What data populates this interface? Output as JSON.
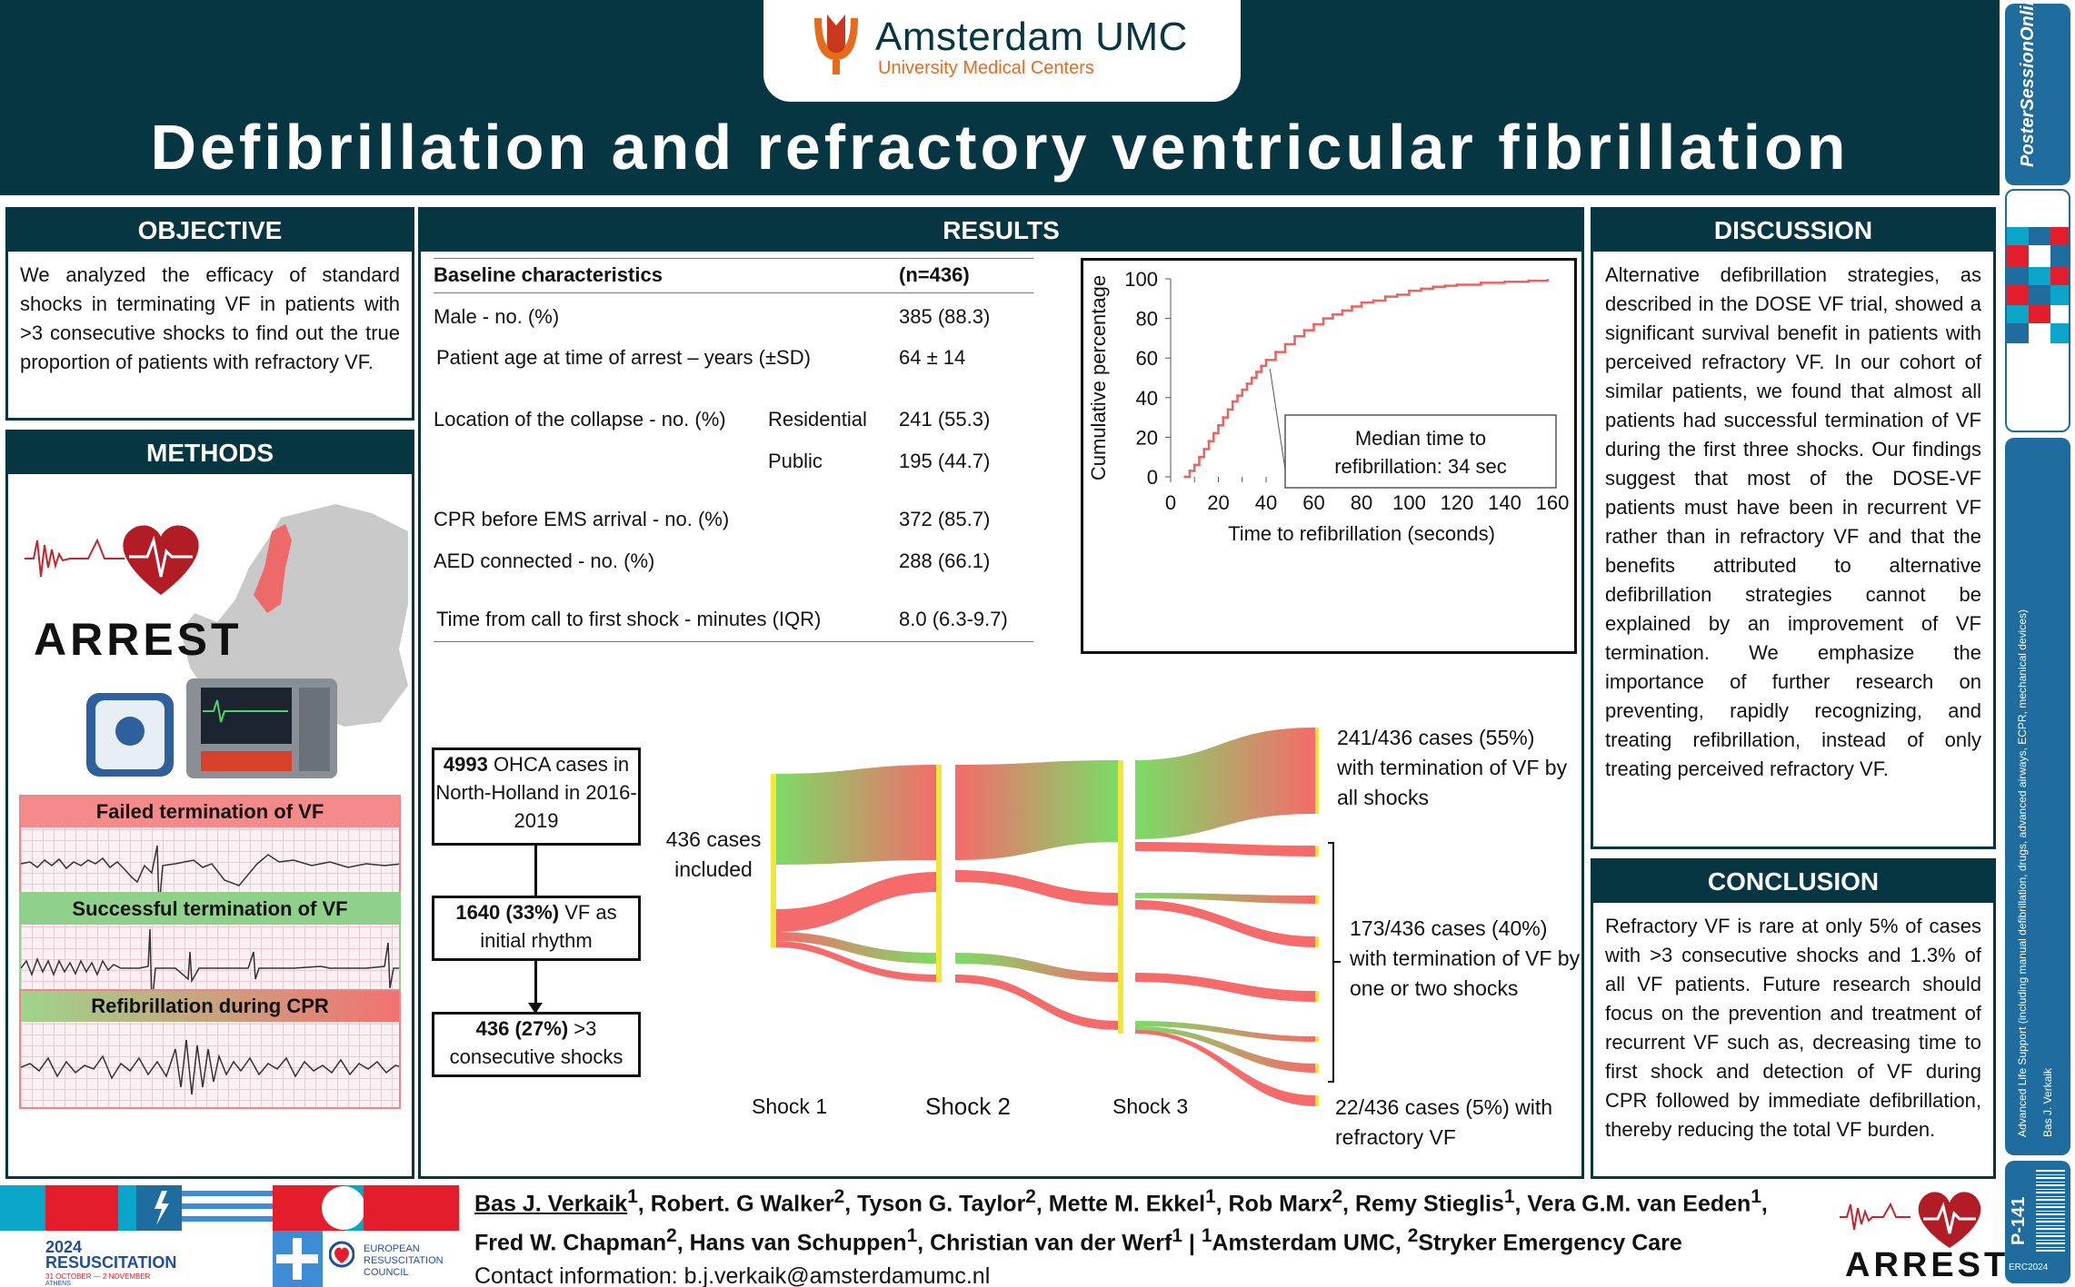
{
  "header": {
    "logo_name": "Amsterdam UMC",
    "logo_sub": "University Medical Centers",
    "title": "Defibrillation and refractory ventricular fibrillation"
  },
  "sidebar": {
    "brand": "PosterSessionOnline",
    "topic": "Advanced Life Support (including manual defibrillation, drugs, advanced airways, ECPR, mechanical devices)",
    "author": "Bas J. Verkaik",
    "code": "P-141",
    "erc": "ERC2024"
  },
  "objective": {
    "heading": "OBJECTIVE",
    "text": "We analyzed the efficacy of standard shocks in terminating VF in patients with >3 consecutive shocks to find out the true proportion of patients with refractory VF."
  },
  "methods": {
    "heading": "METHODS",
    "arrest_label": "ARREST",
    "ecg": [
      {
        "title": "Failed termination of VF",
        "color": "#f58a8a"
      },
      {
        "title": "Successful termination of VF",
        "color": "#8fd18a"
      },
      {
        "title": "Refibrillation during CPR",
        "color_from": "#9fd48a",
        "color_to": "#f27272"
      }
    ]
  },
  "results": {
    "heading": "RESULTS",
    "baseline": {
      "header_label": "Baseline characteristics",
      "header_value": "(n=436)",
      "rows": [
        {
          "label": "Male - no. (%)",
          "sub": "",
          "value": "385 (88.3)"
        },
        {
          "label": "Patient age at time of arrest – years (±SD)",
          "sub": "",
          "value": "64 ± 14"
        },
        {
          "label": "Location of the collapse - no. (%)",
          "sub": "Residential",
          "value": "241 (55.3)"
        },
        {
          "label": "",
          "sub": "Public",
          "value": "195 (44.7)"
        },
        {
          "label": "CPR before EMS arrival - no. (%)",
          "sub": "",
          "value": "372 (85.7)"
        },
        {
          "label": "AED connected - no. (%)",
          "sub": "",
          "value": "288 (66.1)"
        },
        {
          "label": "Time from call to first shock - minutes (IQR)",
          "sub": "",
          "value": "8.0 (6.3-9.7)"
        }
      ]
    },
    "flow": [
      {
        "bold": "4993",
        "text": " OHCA cases in North-Holland in 2016-2019"
      },
      {
        "bold": "1640 (33%)",
        "text": " VF as initial rhythm"
      },
      {
        "bold": "436   (27%)",
        "text": " >3 consecutive shocks"
      }
    ],
    "sankey": {
      "included_label": "436 cases included",
      "shocks": [
        "Shock 1",
        "Shock 2",
        "Shock 3"
      ],
      "outcome_all": "241/436 cases (55%) with termination of VF by all shocks",
      "outcome_one_two": "173/436 cases (40%) with termination of VF by one or two shocks",
      "outcome_refractory": "22/436 cases (5%) with refractory VF",
      "color_success": "#7bdc66",
      "color_fail": "#f56b6b",
      "node_color": "#f0e63c"
    }
  },
  "chart_data": {
    "type": "line",
    "title": "",
    "xlabel": "Time to refibrillation (seconds)",
    "ylabel": "Cumulative percentage",
    "xlim": [
      0,
      160
    ],
    "ylim": [
      0,
      100
    ],
    "xticks": [
      0,
      20,
      40,
      60,
      80,
      100,
      120,
      140,
      160
    ],
    "yticks": [
      0,
      20,
      40,
      60,
      80,
      100
    ],
    "grid": false,
    "annotation": "Median time to refibrillation: 34 sec",
    "series": [
      {
        "color": "#e8645f",
        "x": [
          6,
          8,
          10,
          12,
          14,
          16,
          18,
          20,
          22,
          24,
          26,
          28,
          30,
          32,
          34,
          36,
          38,
          40,
          44,
          48,
          52,
          56,
          60,
          64,
          68,
          72,
          76,
          80,
          85,
          90,
          95,
          100,
          105,
          110,
          115,
          120,
          130,
          140,
          150,
          158
        ],
        "y": [
          0,
          3,
          6,
          10,
          14,
          18,
          22,
          26,
          30,
          34,
          38,
          41,
          44,
          47,
          50,
          53,
          56,
          59,
          63,
          67,
          71,
          74,
          77,
          80,
          82,
          84,
          86,
          88,
          89,
          91,
          92,
          94,
          95,
          96,
          96.5,
          97,
          98,
          98.5,
          99,
          99.3
        ]
      }
    ]
  },
  "discussion": {
    "heading": "DISCUSSION",
    "text": "Alternative defibrillation strategies, as described in the DOSE VF trial, showed a significant survival benefit in patients with perceived refractory VF. In our cohort of similar patients, we found that almost all patients had successful termination of VF during the first three shocks. Our findings suggest that most of the DOSE-VF patients must have been in recurrent VF rather than in refractory VF and that the benefits attributed to alternative defibrillation strategies cannot be explained by an improvement of VF termination. We emphasize the importance of further research on preventing, rapidly recognizing, and treating refibrillation, instead of only treating perceived refractory VF."
  },
  "conclusion": {
    "heading": "CONCLUSION",
    "text": "Refractory VF is rare at only 5% of cases with >3 consecutive shocks and 1.3% of all VF patients. Future research should focus on the prevention and treatment of recurrent VF such as, decreasing time to first shock and detection of VF during CPR followed by immediate defibrillation, thereby reducing the total VF burden."
  },
  "footer": {
    "first_author": "Bas J. Verkaik",
    "authors_line1_html": "<u>Bas J. Verkaik</u><sup>1</sup>, Robert. G Walker<sup>2</sup>, Tyson G. Taylor<sup>2</sup>, Mette M. Ekkel<sup>1</sup>, Rob Marx<sup>2</sup>, Remy Stieglis<sup>1</sup>,  Vera G.M. van Eeden<sup>1</sup>,",
    "authors_line2_html": "Fred W. Chapman<sup>2</sup>, Hans van Schuppen<sup>1</sup>, Christian van der Werf<sup>1</sup> | <sup>1</sup>Amsterdam UMC, <sup>2</sup>Stryker Emergency Care",
    "contact": "Contact information: b.j.verkaik@amsterdamumc.nl",
    "congress_name": "2024 RESUSCITATION",
    "congress_dates": "31 OCTOBER — 2 NOVEMBER",
    "congress_city": "ATHENS",
    "erc_name": "EUROPEAN RESUSCITATION COUNCIL",
    "arrest_label": "ARREST"
  }
}
